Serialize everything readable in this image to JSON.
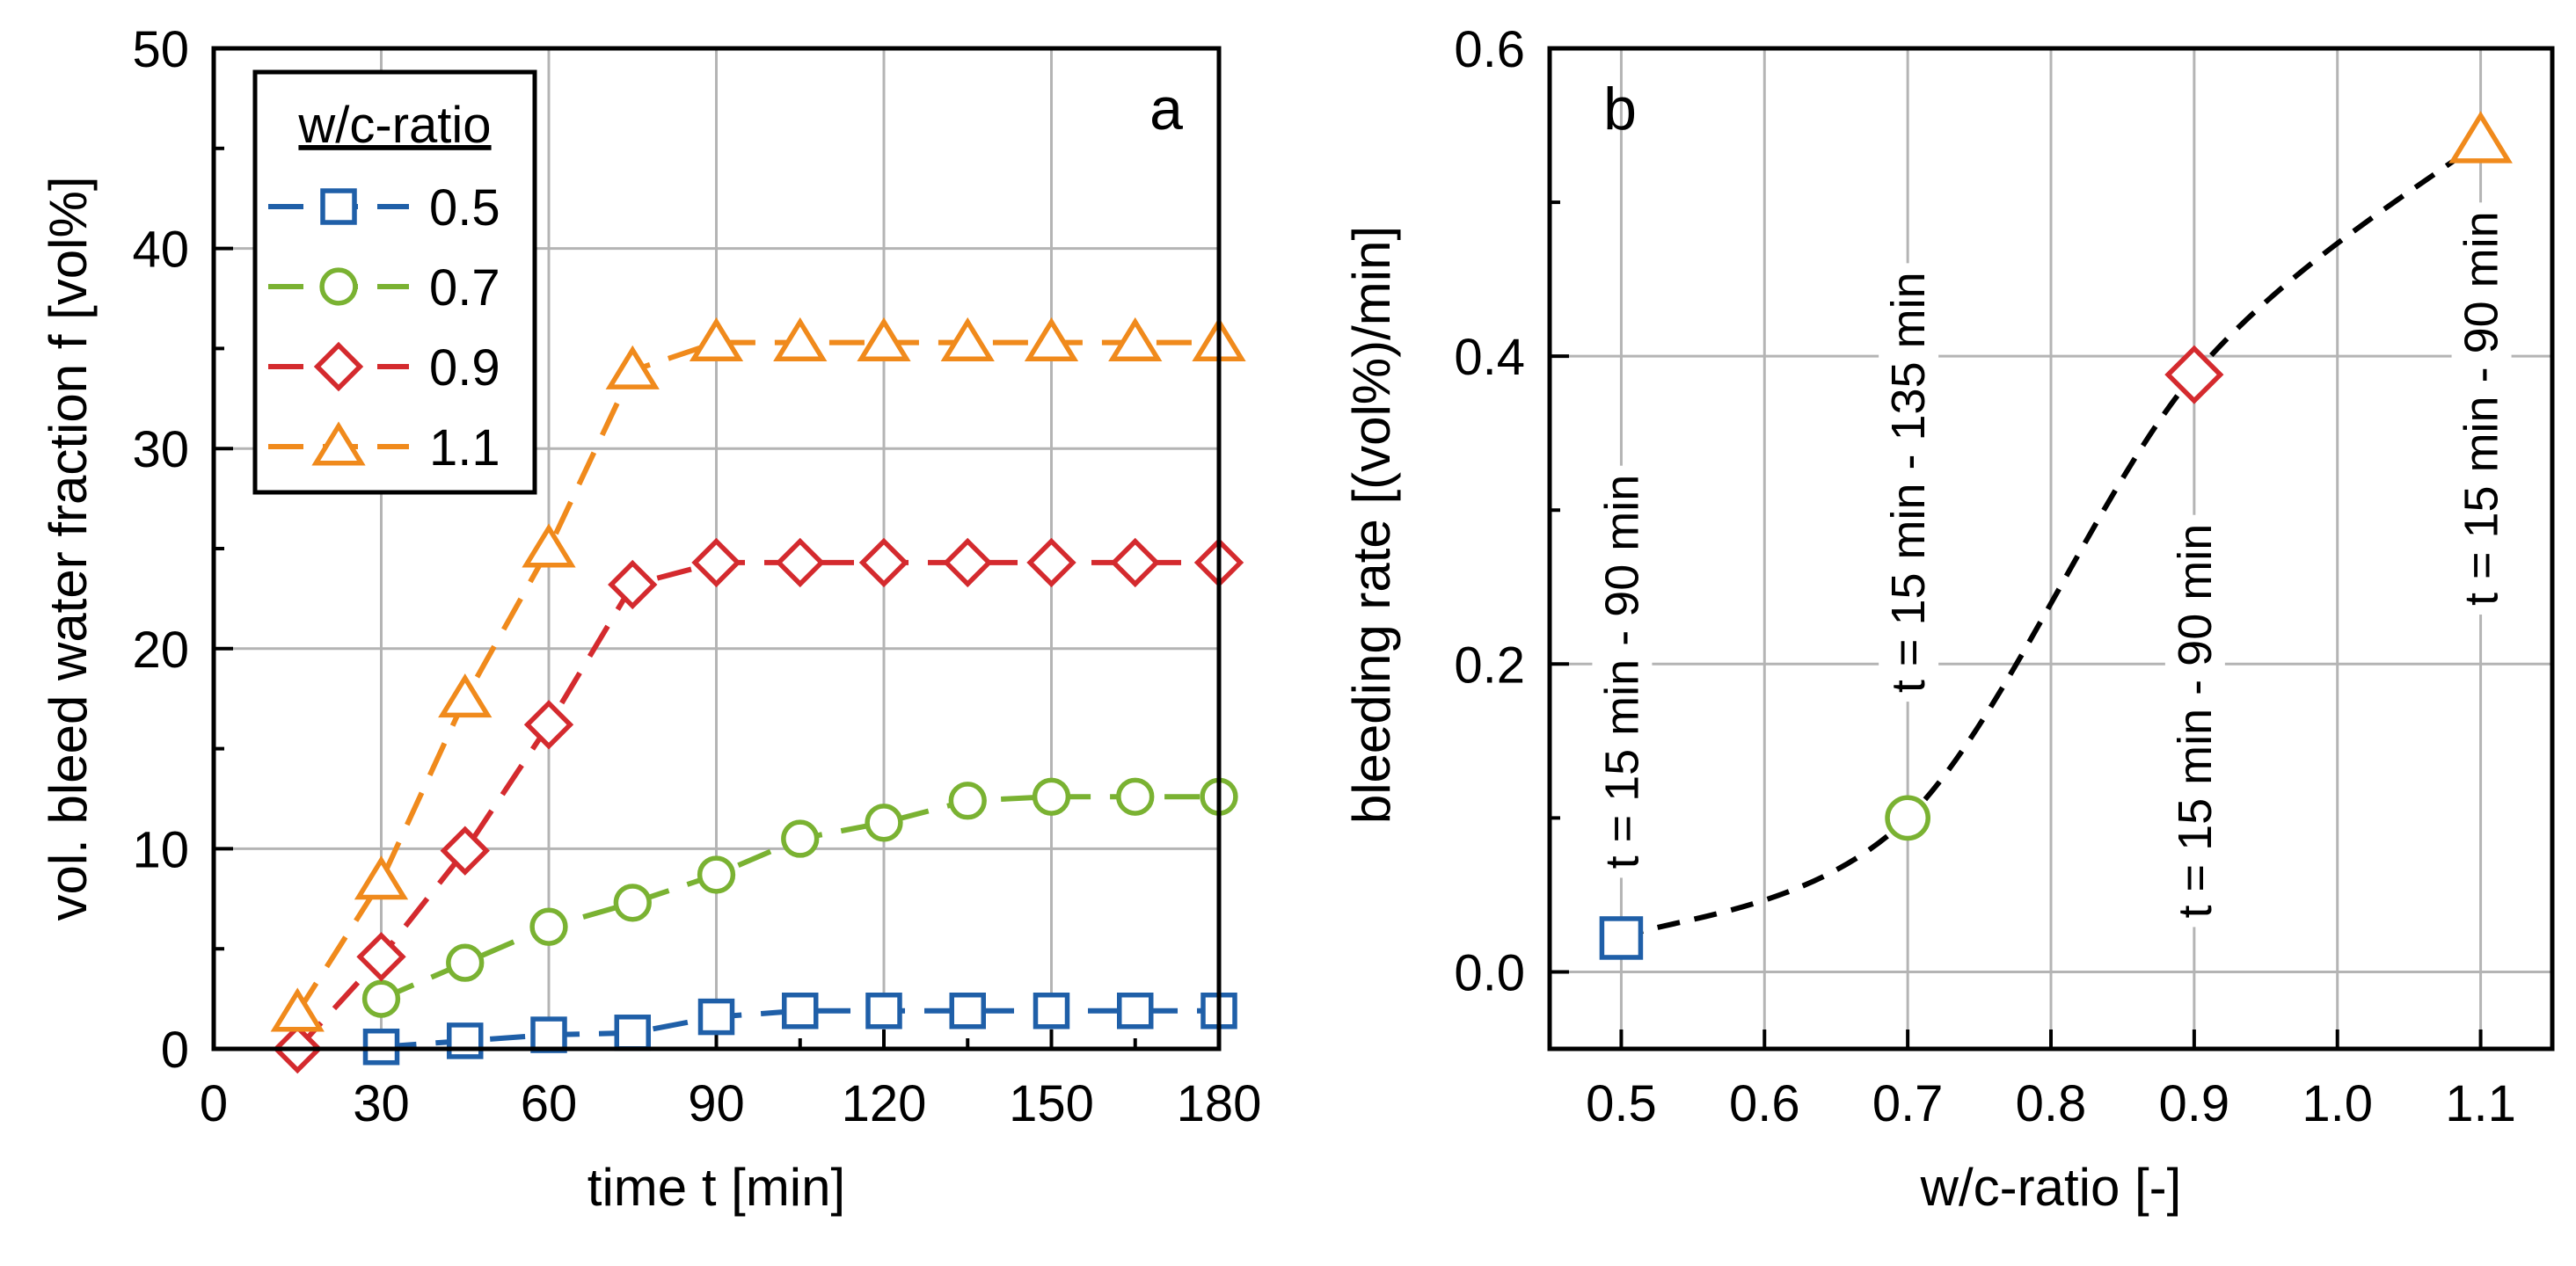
{
  "chart_data": [
    {
      "type": "line",
      "panel_label": "a",
      "xlabel": "time t [min]",
      "ylabel": "vol. bleed water fraction f  [vol%]",
      "xlim": [
        0,
        180
      ],
      "ylim": [
        0,
        50
      ],
      "xticks": [
        0,
        30,
        60,
        90,
        120,
        150,
        180
      ],
      "yticks": [
        0,
        10,
        20,
        30,
        40,
        50
      ],
      "grid": true,
      "legend": {
        "title": "w/c-ratio",
        "placement": "top-left"
      },
      "x": [
        15,
        30,
        45,
        60,
        75,
        90,
        105,
        120,
        135,
        150,
        165,
        180
      ],
      "series": [
        {
          "name": "0.5",
          "marker": "square",
          "color": "#1f5fa8",
          "values": [
            null,
            0.1,
            0.4,
            0.7,
            0.8,
            1.6,
            1.9,
            1.9,
            1.9,
            1.9,
            1.9,
            1.9
          ]
        },
        {
          "name": "0.7",
          "marker": "circle",
          "color": "#7ab232",
          "values": [
            null,
            2.5,
            4.3,
            6.1,
            7.3,
            8.7,
            10.5,
            11.3,
            12.4,
            12.6,
            12.6,
            12.6
          ]
        },
        {
          "name": "0.9",
          "marker": "diamond",
          "color": "#d42a2e",
          "values": [
            0.0,
            4.6,
            9.9,
            16.2,
            23.2,
            24.3,
            24.3,
            24.3,
            24.3,
            24.3,
            24.3,
            24.3
          ]
        },
        {
          "name": "1.1",
          "marker": "triangle",
          "color": "#f08a1c",
          "values": [
            1.8,
            8.4,
            17.5,
            25.0,
            33.9,
            35.3,
            35.3,
            35.3,
            35.3,
            35.3,
            35.3,
            35.3
          ]
        }
      ]
    },
    {
      "type": "scatter",
      "panel_label": "b",
      "xlabel": "w/c-ratio [-]",
      "ylabel": "bleeding rate [(vol%)/min]",
      "xlim": [
        0.45,
        1.15
      ],
      "ylim": [
        -0.05,
        0.6
      ],
      "xticks": [
        0.5,
        0.6,
        0.7,
        0.8,
        0.9,
        1.0,
        1.1
      ],
      "yticks": [
        0.0,
        0.2,
        0.4,
        0.6
      ],
      "grid": true,
      "fit_line": "dashed black",
      "points": [
        {
          "x": 0.5,
          "y": 0.022,
          "marker": "square",
          "color": "#1f5fa8",
          "annotation": "t = 15 min - 90 min"
        },
        {
          "x": 0.7,
          "y": 0.1,
          "marker": "circle",
          "color": "#7ab232",
          "annotation": "t = 15 min - 135 min"
        },
        {
          "x": 0.9,
          "y": 0.388,
          "marker": "diamond",
          "color": "#d42a2e",
          "annotation": "t = 15 min - 90 min"
        },
        {
          "x": 1.1,
          "y": 0.54,
          "marker": "triangle",
          "color": "#f08a1c",
          "annotation": "t = 15 min - 90 min"
        }
      ]
    }
  ]
}
